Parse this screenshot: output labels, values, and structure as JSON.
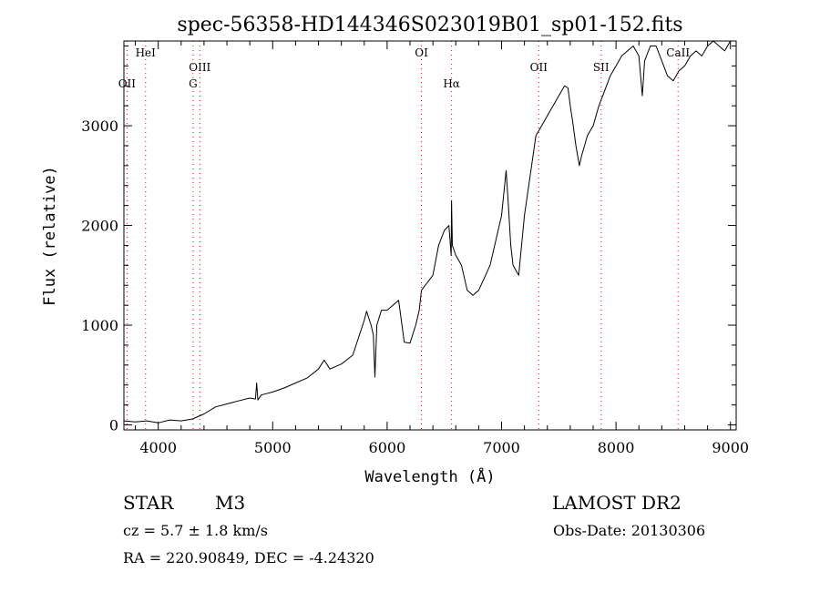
{
  "chart_data": {
    "type": "line",
    "title": "spec-56358-HD144346S023019B01_sp01-152.fits",
    "xlabel": "Wavelength (Å)",
    "ylabel": "Flux (relative)",
    "xlim": [
      3700,
      9050
    ],
    "ylim": [
      -50,
      3850
    ],
    "xticks": [
      4000,
      5000,
      6000,
      7000,
      8000,
      9000
    ],
    "yticks": [
      0,
      1000,
      2000,
      3000
    ],
    "grid": false,
    "line_color": "#000000",
    "marker_color": "#ff0000",
    "lines": [
      {
        "label": "OII",
        "x": 3727,
        "row": 2
      },
      {
        "label": "HeI",
        "x": 3889,
        "row": 0
      },
      {
        "label": "OIII",
        "x": 4363,
        "row": 1
      },
      {
        "label": "G",
        "x": 4304,
        "row": 2
      },
      {
        "label": "OI",
        "x": 6300,
        "row": 0
      },
      {
        "label": "Hα",
        "x": 6563,
        "row": 2
      },
      {
        "label": "OII",
        "x": 7325,
        "row": 1
      },
      {
        "label": "SII",
        "x": 7870,
        "row": 1
      },
      {
        "label": "CaII",
        "x": 8542,
        "row": 0
      }
    ],
    "series": [
      {
        "x": [
          3700,
          3800,
          3900,
          4000,
          4100,
          4200,
          4300,
          4400,
          4500,
          4600,
          4700,
          4800,
          4850,
          4860,
          4870,
          4900,
          5000,
          5100,
          5200,
          5300,
          5400,
          5450,
          5500,
          5600,
          5700,
          5800,
          5820,
          5860,
          5880,
          5893,
          5910,
          5950,
          6000,
          6100,
          6150,
          6200,
          6250,
          6280,
          6300,
          6400,
          6450,
          6500,
          6540,
          6560,
          6563,
          6570,
          6600,
          6650,
          6700,
          6750,
          6800,
          6900,
          7000,
          7040,
          7060,
          7080,
          7100,
          7150,
          7200,
          7250,
          7300,
          7350,
          7400,
          7450,
          7500,
          7550,
          7580,
          7600,
          7620,
          7650,
          7680,
          7700,
          7750,
          7800,
          7850,
          7900,
          7950,
          8000,
          8050,
          8100,
          8150,
          8200,
          8230,
          8250,
          8300,
          8350,
          8400,
          8450,
          8500,
          8550,
          8600,
          8650,
          8700,
          8750,
          8800,
          8850,
          8900,
          8950,
          9000
        ],
        "values": [
          40,
          30,
          40,
          20,
          50,
          40,
          60,
          110,
          180,
          210,
          240,
          270,
          260,
          420,
          250,
          300,
          330,
          370,
          420,
          470,
          560,
          650,
          560,
          610,
          700,
          1050,
          1140,
          1000,
          900,
          480,
          1000,
          1150,
          1150,
          1250,
          830,
          820,
          1000,
          1150,
          1350,
          1500,
          1800,
          1950,
          2000,
          1700,
          2250,
          1800,
          1700,
          1600,
          1350,
          1300,
          1350,
          1600,
          2100,
          2550,
          2200,
          1800,
          1600,
          1500,
          2100,
          2500,
          2900,
          3000,
          3100,
          3200,
          3300,
          3400,
          3380,
          3200,
          3050,
          2800,
          2600,
          2700,
          2900,
          3000,
          3200,
          3350,
          3500,
          3600,
          3700,
          3750,
          3800,
          3700,
          3300,
          3650,
          3800,
          3800,
          3650,
          3500,
          3450,
          3550,
          3600,
          3700,
          3750,
          3700,
          3800,
          3850,
          3800,
          3750,
          3850
        ]
      }
    ]
  },
  "info": {
    "class": "STAR",
    "subclass": "M3",
    "survey": "LAMOST DR2",
    "cz": "cz = 5.7 ± 1.8 km/s",
    "obs_date": "Obs-Date: 20130306",
    "coords": "RA = 220.90849, DEC =  -4.24320"
  }
}
